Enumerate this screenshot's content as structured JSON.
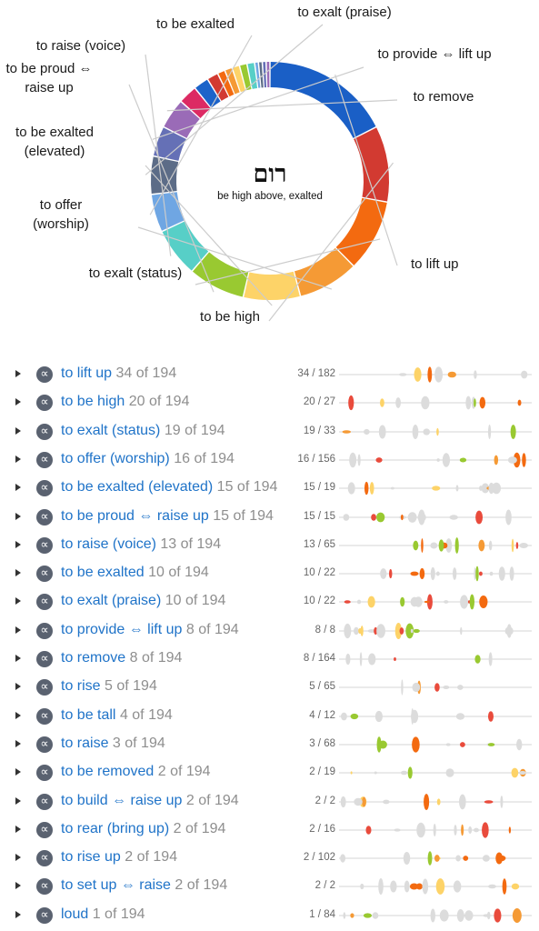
{
  "center": {
    "word": "רום",
    "gloss": "be high above, exalted"
  },
  "chart_data": {
    "type": "pie",
    "total": 194,
    "slices": [
      {
        "label": "to lift up",
        "value": 34,
        "color": "#1a5fc6"
      },
      {
        "label": "to be high",
        "value": 20,
        "color": "#d23a31"
      },
      {
        "label": "to exalt (status)",
        "value": 19,
        "color": "#f36a10"
      },
      {
        "label": "to offer (worship)",
        "value": 16,
        "color": "#f59a35"
      },
      {
        "label": "to be exalted (elevated)",
        "value": 15,
        "color": "#fdd368"
      },
      {
        "label": "to be proud ⇔ raise up",
        "value": 15,
        "color": "#99c931"
      },
      {
        "label": "to raise (voice)",
        "value": 13,
        "color": "#57cfc7"
      },
      {
        "label": "to be exalted",
        "value": 10,
        "color": "#6fa6e3"
      },
      {
        "label": "to exalt (praise)",
        "value": 10,
        "color": "#5c6c87"
      },
      {
        "label": "to provide ⇔ lift up",
        "value": 8,
        "color": "#6570b6"
      },
      {
        "label": "to remove",
        "value": 8,
        "color": "#9a6bb7"
      },
      {
        "label": "to rise",
        "value": 5,
        "color": "#dc2a63"
      },
      {
        "label": "to be tall",
        "value": 4,
        "color": "#1c63c9"
      },
      {
        "label": "to raise",
        "value": 3,
        "color": "#d23a31"
      },
      {
        "label": "to be removed",
        "value": 2,
        "color": "#f36a10"
      },
      {
        "label": "to build ⇔ raise up",
        "value": 2,
        "color": "#f59a35"
      },
      {
        "label": "to rear (bring up)",
        "value": 2,
        "color": "#fdd368"
      },
      {
        "label": "to rise up",
        "value": 2,
        "color": "#99c931"
      },
      {
        "label": "to set up ⇔ raise",
        "value": 2,
        "color": "#57cfc7"
      },
      {
        "label": "loud",
        "value": 1,
        "color": "#6fa6e3"
      },
      {
        "label": "",
        "value": 1,
        "color": "#5c6c87"
      },
      {
        "label": "",
        "value": 1,
        "color": "#6570b6"
      },
      {
        "label": "",
        "value": 1,
        "color": "#9a6bb7"
      }
    ]
  },
  "senses": [
    {
      "gloss": "to lift up",
      "count": "34 of 194",
      "ratio": "34 / 182",
      "color": "#f59a35"
    },
    {
      "gloss": "to be high",
      "count": "20 of 194",
      "ratio": "20 / 27",
      "color": "#f59a35"
    },
    {
      "gloss": "to exalt (status)",
      "count": "19 of 194",
      "ratio": "19 / 33",
      "color": "#f59a35"
    },
    {
      "gloss": "to offer (worship)",
      "count": "16 of 194",
      "ratio": "16 / 156",
      "color": "#f59a35"
    },
    {
      "gloss": "to be exalted (elevated)",
      "count": "15 of 194",
      "ratio": "15 / 19",
      "color": "#f59a35"
    },
    {
      "gloss": "to be proud ⇔ raise up",
      "count": "15 of 194",
      "ratio": "15 / 15",
      "color": "#f59a35"
    },
    {
      "gloss": "to raise (voice)",
      "count": "13 of 194",
      "ratio": "13 / 65",
      "color": "#f59a35"
    },
    {
      "gloss": "to be exalted",
      "count": "10 of 194",
      "ratio": "10 / 22",
      "color": "#f59a35"
    },
    {
      "gloss": "to exalt (praise)",
      "count": "10 of 194",
      "ratio": "10 / 22",
      "color": "#f59a35"
    },
    {
      "gloss": "to provide ⇔ lift up",
      "count": "8 of 194",
      "ratio": "8 / 8",
      "color": "#f59a35"
    },
    {
      "gloss": "to remove",
      "count": "8 of 194",
      "ratio": "8 / 164",
      "color": "#f59a35"
    },
    {
      "gloss": "to rise",
      "count": "5 of 194",
      "ratio": "5 / 65",
      "color": "#f59a35"
    },
    {
      "gloss": "to be tall",
      "count": "4 of 194",
      "ratio": "4 / 12",
      "color": "#f59a35"
    },
    {
      "gloss": "to raise",
      "count": "3 of 194",
      "ratio": "3 / 68",
      "color": "#f59a35"
    },
    {
      "gloss": "to be removed",
      "count": "2 of 194",
      "ratio": "2 / 19",
      "color": "#f59a35"
    },
    {
      "gloss": "to build ⇔ raise up",
      "count": "2 of 194",
      "ratio": "2 / 2",
      "color": "#f59a35"
    },
    {
      "gloss": "to rear (bring up)",
      "count": "2 of 194",
      "ratio": "2 / 16",
      "color": "#f59a35"
    },
    {
      "gloss": "to rise up",
      "count": "2 of 194",
      "ratio": "2 / 102",
      "color": "#f59a35"
    },
    {
      "gloss": "to set up ⇔ raise",
      "count": "2 of 194",
      "ratio": "2 / 2",
      "color": "#f59a35"
    },
    {
      "gloss": "loud",
      "count": "1 of 194",
      "ratio": "1 / 84",
      "color": "#f59a35"
    }
  ],
  "icons": {
    "expand": "expand-caret-icon",
    "sense": "alpha-sense-icon",
    "alpha_glyph": "∝"
  }
}
